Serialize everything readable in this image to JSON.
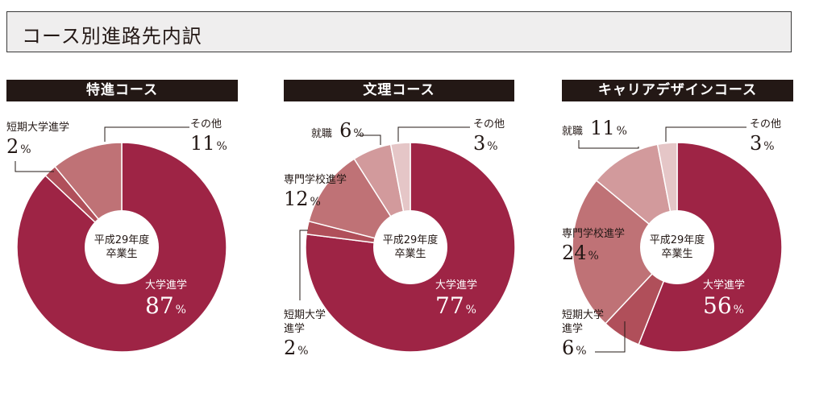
{
  "page_title": "コース別進路先内訳",
  "center": {
    "line1": "平成29年度",
    "line2": "卒業生"
  },
  "colors": {
    "university": "#9e2445",
    "junior": "#b04f5a",
    "vocational": "#bf7276",
    "employment": "#d29a9c",
    "other": "#e5c6c7",
    "header_bg": "#231815"
  },
  "chart_data": [
    {
      "type": "pie",
      "title": "特進コース",
      "slices": [
        {
          "label": "大学進学",
          "value": 87,
          "unit": "%",
          "color_key": "university"
        },
        {
          "label": "短期大学進学",
          "value": 2,
          "unit": "%",
          "color_key": "junior"
        },
        {
          "label": "その他",
          "value": 11,
          "unit": "%",
          "color_key": "vocational"
        }
      ]
    },
    {
      "type": "pie",
      "title": "文理コース",
      "slices": [
        {
          "label": "大学進学",
          "value": 77,
          "unit": "%",
          "color_key": "university"
        },
        {
          "label": "短期大学進学",
          "value": 2,
          "unit": "%",
          "color_key": "junior"
        },
        {
          "label": "専門学校進学",
          "value": 12,
          "unit": "%",
          "color_key": "vocational"
        },
        {
          "label": "就職",
          "value": 6,
          "unit": "%",
          "color_key": "employment"
        },
        {
          "label": "その他",
          "value": 3,
          "unit": "%",
          "color_key": "other"
        }
      ]
    },
    {
      "type": "pie",
      "title": "キャリアデザインコース",
      "slices": [
        {
          "label": "大学進学",
          "value": 56,
          "unit": "%",
          "color_key": "university"
        },
        {
          "label": "短期大学進学",
          "value": 6,
          "unit": "%",
          "color_key": "junior"
        },
        {
          "label": "専門学校進学",
          "value": 24,
          "unit": "%",
          "color_key": "vocational"
        },
        {
          "label": "就職",
          "value": 11,
          "unit": "%",
          "color_key": "employment"
        },
        {
          "label": "その他",
          "value": 3,
          "unit": "%",
          "color_key": "other"
        }
      ]
    }
  ],
  "labels": {
    "c1": {
      "university": {
        "name": "大学進学",
        "num": "87",
        "unit": "%"
      },
      "junior": {
        "name": "短期大学進学",
        "num": "2",
        "unit": "%"
      },
      "other": {
        "name": "その他",
        "num": "11",
        "unit": "%"
      }
    },
    "c2": {
      "university": {
        "name": "大学進学",
        "num": "77",
        "unit": "%"
      },
      "junior": {
        "name1": "短期大学",
        "name2": "進学",
        "num": "2",
        "unit": "%"
      },
      "vocational": {
        "name": "専門学校進学",
        "num": "12",
        "unit": "%"
      },
      "employment": {
        "name": "就職",
        "num": "6",
        "unit": "%"
      },
      "other": {
        "name": "その他",
        "num": "3",
        "unit": "%"
      }
    },
    "c3": {
      "university": {
        "name": "大学進学",
        "num": "56",
        "unit": "%"
      },
      "junior": {
        "name1": "短期大学",
        "name2": "進学",
        "num": "6",
        "unit": "%"
      },
      "vocational": {
        "name": "専門学校進学",
        "num": "24",
        "unit": "%"
      },
      "employment": {
        "name": "就職",
        "num": "11",
        "unit": "%"
      },
      "other": {
        "name": "その他",
        "num": "3",
        "unit": "%"
      }
    }
  }
}
